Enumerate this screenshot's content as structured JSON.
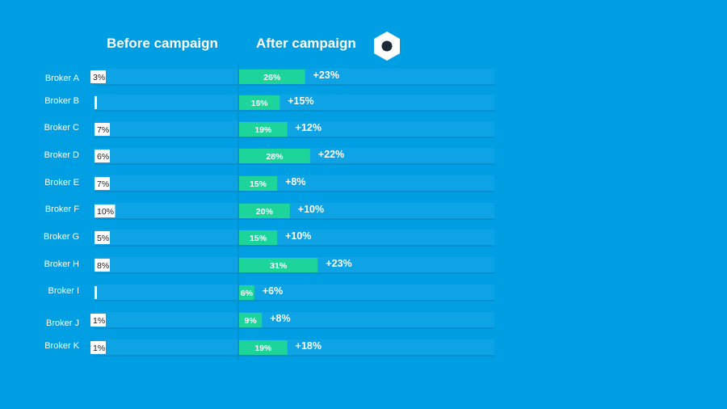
{
  "chart_data": {
    "type": "bar",
    "panels": [
      "Before campaign",
      "After campaign"
    ],
    "categories": [
      "Broker A",
      "Broker B",
      "Broker C",
      "Broker D",
      "Broker E",
      "Broker F",
      "Broker G",
      "Broker H",
      "Broker I",
      "Broker J",
      "Broker K"
    ],
    "series": [
      {
        "name": "Before campaign",
        "values": [
          3,
          0,
          7,
          6,
          7,
          10,
          5,
          8,
          0,
          1,
          1
        ],
        "labels": [
          "3%",
          "",
          "7%",
          "6%",
          "7%",
          "10%",
          "5%",
          "8%",
          "",
          "1%",
          "1%"
        ]
      },
      {
        "name": "After campaign",
        "values": [
          26,
          16,
          19,
          28,
          15,
          20,
          15,
          31,
          6,
          9,
          19
        ],
        "labels": [
          "26%",
          "16%",
          "19%",
          "28%",
          "15%",
          "20%",
          "15%",
          "31%",
          "6%",
          "9%",
          "19%"
        ]
      }
    ],
    "change_labels": [
      "+23%",
      "+15%",
      "+12%",
      "+22%",
      "+8%",
      "+10%",
      "+10%",
      "+23%",
      "+6%",
      "+8%",
      "+18%"
    ],
    "colors": {
      "background": "#009FE3",
      "after_bar": "#1DD49A",
      "before_bar": "#ffffff",
      "label_box": "#ffffff"
    }
  }
}
